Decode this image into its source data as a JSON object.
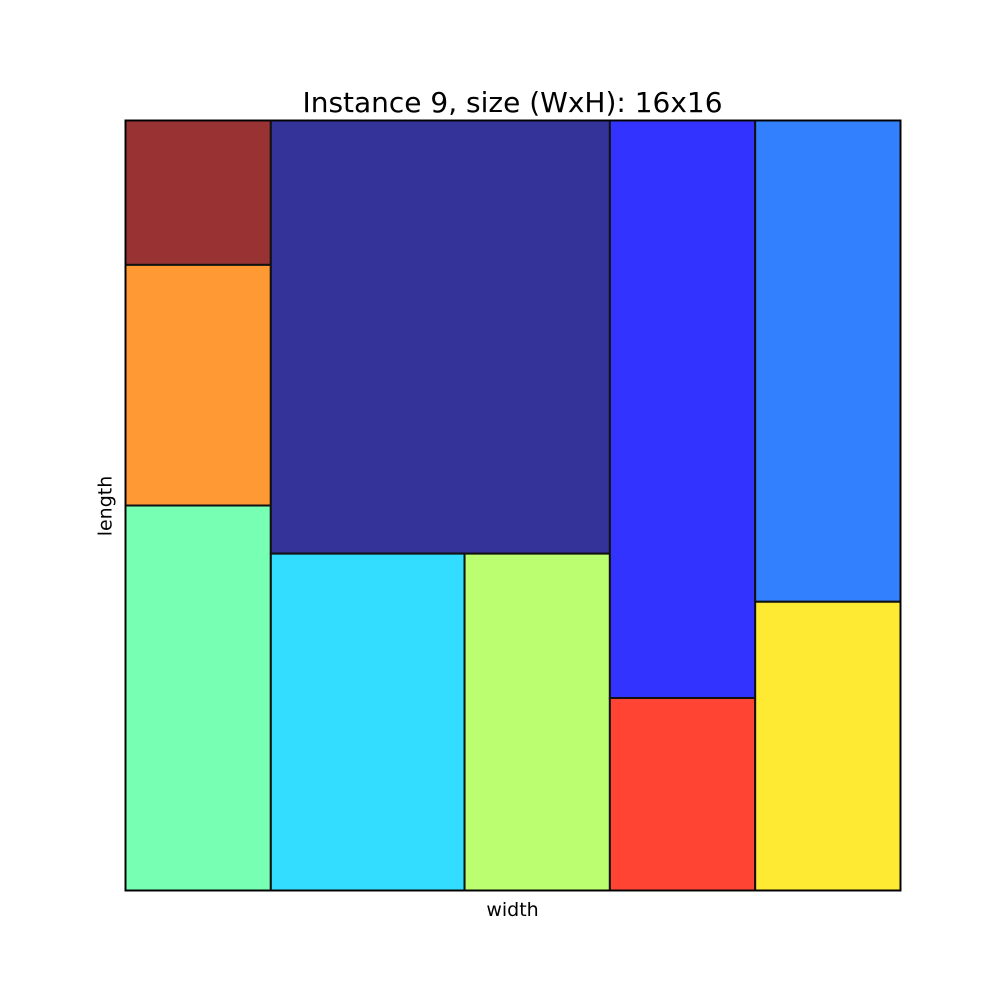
{
  "title": "Instance 9, size (WxH): 16x16",
  "xlabel": "width",
  "ylabel": "length",
  "container": {
    "width": 16,
    "height": 16
  },
  "chart_data": {
    "type": "packing",
    "title": "Instance 9, size (WxH): 16x16",
    "xlabel": "width",
    "ylabel": "length",
    "xlim": [
      0,
      16
    ],
    "ylim": [
      0,
      16
    ],
    "grid": false,
    "rectangles": [
      {
        "x": 0,
        "y": 13,
        "w": 3,
        "h": 3,
        "color": "#993333"
      },
      {
        "x": 0,
        "y": 8,
        "w": 3,
        "h": 5,
        "color": "#ff9933"
      },
      {
        "x": 0,
        "y": 0,
        "w": 3,
        "h": 8,
        "color": "#77ffb4"
      },
      {
        "x": 3,
        "y": 7,
        "w": 7,
        "h": 9,
        "color": "#333399"
      },
      {
        "x": 3,
        "y": 0,
        "w": 4,
        "h": 7,
        "color": "#33ddff"
      },
      {
        "x": 7,
        "y": 0,
        "w": 3,
        "h": 7,
        "color": "#bbff70"
      },
      {
        "x": 10,
        "y": 4,
        "w": 3,
        "h": 12,
        "color": "#3333ff"
      },
      {
        "x": 10,
        "y": 0,
        "w": 3,
        "h": 4,
        "color": "#ff4433"
      },
      {
        "x": 13,
        "y": 6,
        "w": 3,
        "h": 10,
        "color": "#3380ff"
      },
      {
        "x": 13,
        "y": 0,
        "w": 3,
        "h": 6,
        "color": "#ffea33"
      }
    ]
  }
}
